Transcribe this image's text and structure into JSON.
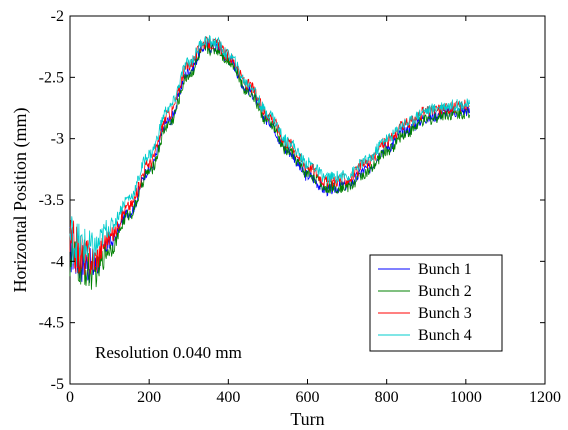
{
  "chart_data": {
    "type": "line",
    "title": "",
    "xlabel": "Turn",
    "ylabel": "Horizontal Position (mm)",
    "xlim": [
      0,
      1200
    ],
    "ylim": [
      -5,
      -2
    ],
    "xticks": [
      0,
      200,
      400,
      600,
      800,
      1000,
      1200
    ],
    "yticks": [
      -5,
      -4.5,
      -4,
      -3.5,
      -3,
      -2.5,
      -2
    ],
    "xtick_labels": [
      "0",
      "200",
      "400",
      "600",
      "800",
      "1000",
      "1200"
    ],
    "ytick_labels": [
      "-5",
      "-4.5",
      "-4",
      "-3.5",
      "-3",
      "-2.5",
      "-2"
    ],
    "grid": false,
    "legend_position": "bottom-right",
    "annotation": "Resolution 0.040 mm",
    "series": [
      {
        "name": "Bunch 1",
        "color": "#0000ff",
        "noise": 0.05,
        "x": [
          0,
          30,
          60,
          100,
          150,
          200,
          250,
          300,
          340,
          370,
          400,
          450,
          500,
          550,
          600,
          650,
          700,
          750,
          800,
          850,
          900,
          950,
          1000,
          1010
        ],
        "y": [
          -3.9,
          -4.0,
          -4.05,
          -3.85,
          -3.6,
          -3.25,
          -2.85,
          -2.45,
          -2.25,
          -2.25,
          -2.35,
          -2.6,
          -2.85,
          -3.1,
          -3.3,
          -3.42,
          -3.38,
          -3.25,
          -3.07,
          -2.93,
          -2.83,
          -2.79,
          -2.77,
          -2.78
        ]
      },
      {
        "name": "Bunch 2",
        "color": "#008000",
        "noise": 0.05,
        "x": [
          0,
          30,
          60,
          100,
          150,
          200,
          250,
          300,
          340,
          370,
          400,
          450,
          500,
          550,
          600,
          650,
          700,
          750,
          800,
          850,
          900,
          950,
          1000,
          1010
        ],
        "y": [
          -3.95,
          -4.05,
          -4.1,
          -3.9,
          -3.62,
          -3.27,
          -2.88,
          -2.48,
          -2.27,
          -2.27,
          -2.36,
          -2.61,
          -2.86,
          -3.1,
          -3.28,
          -3.4,
          -3.39,
          -3.28,
          -3.1,
          -2.95,
          -2.85,
          -2.8,
          -2.79,
          -2.8
        ]
      },
      {
        "name": "Bunch 3",
        "color": "#ff0000",
        "noise": 0.05,
        "x": [
          0,
          30,
          60,
          100,
          150,
          200,
          250,
          300,
          340,
          370,
          400,
          450,
          500,
          550,
          600,
          650,
          700,
          750,
          800,
          850,
          900,
          950,
          1000,
          1010
        ],
        "y": [
          -3.85,
          -3.95,
          -3.98,
          -3.8,
          -3.55,
          -3.2,
          -2.8,
          -2.4,
          -2.22,
          -2.23,
          -2.33,
          -2.56,
          -2.8,
          -3.03,
          -3.22,
          -3.35,
          -3.33,
          -3.2,
          -3.02,
          -2.88,
          -2.78,
          -2.75,
          -2.73,
          -2.74
        ]
      },
      {
        "name": "Bunch 4",
        "color": "#00cccc",
        "noise": 0.05,
        "x": [
          0,
          30,
          60,
          100,
          150,
          200,
          250,
          300,
          340,
          370,
          400,
          450,
          500,
          550,
          600,
          650,
          700,
          750,
          800,
          850,
          900,
          950,
          1000,
          1010
        ],
        "y": [
          -3.8,
          -3.88,
          -3.9,
          -3.72,
          -3.48,
          -3.13,
          -2.75,
          -2.38,
          -2.2,
          -2.22,
          -2.32,
          -2.55,
          -2.79,
          -3.02,
          -3.2,
          -3.32,
          -3.3,
          -3.18,
          -3.0,
          -2.87,
          -2.77,
          -2.73,
          -2.72,
          -2.73
        ]
      }
    ]
  }
}
